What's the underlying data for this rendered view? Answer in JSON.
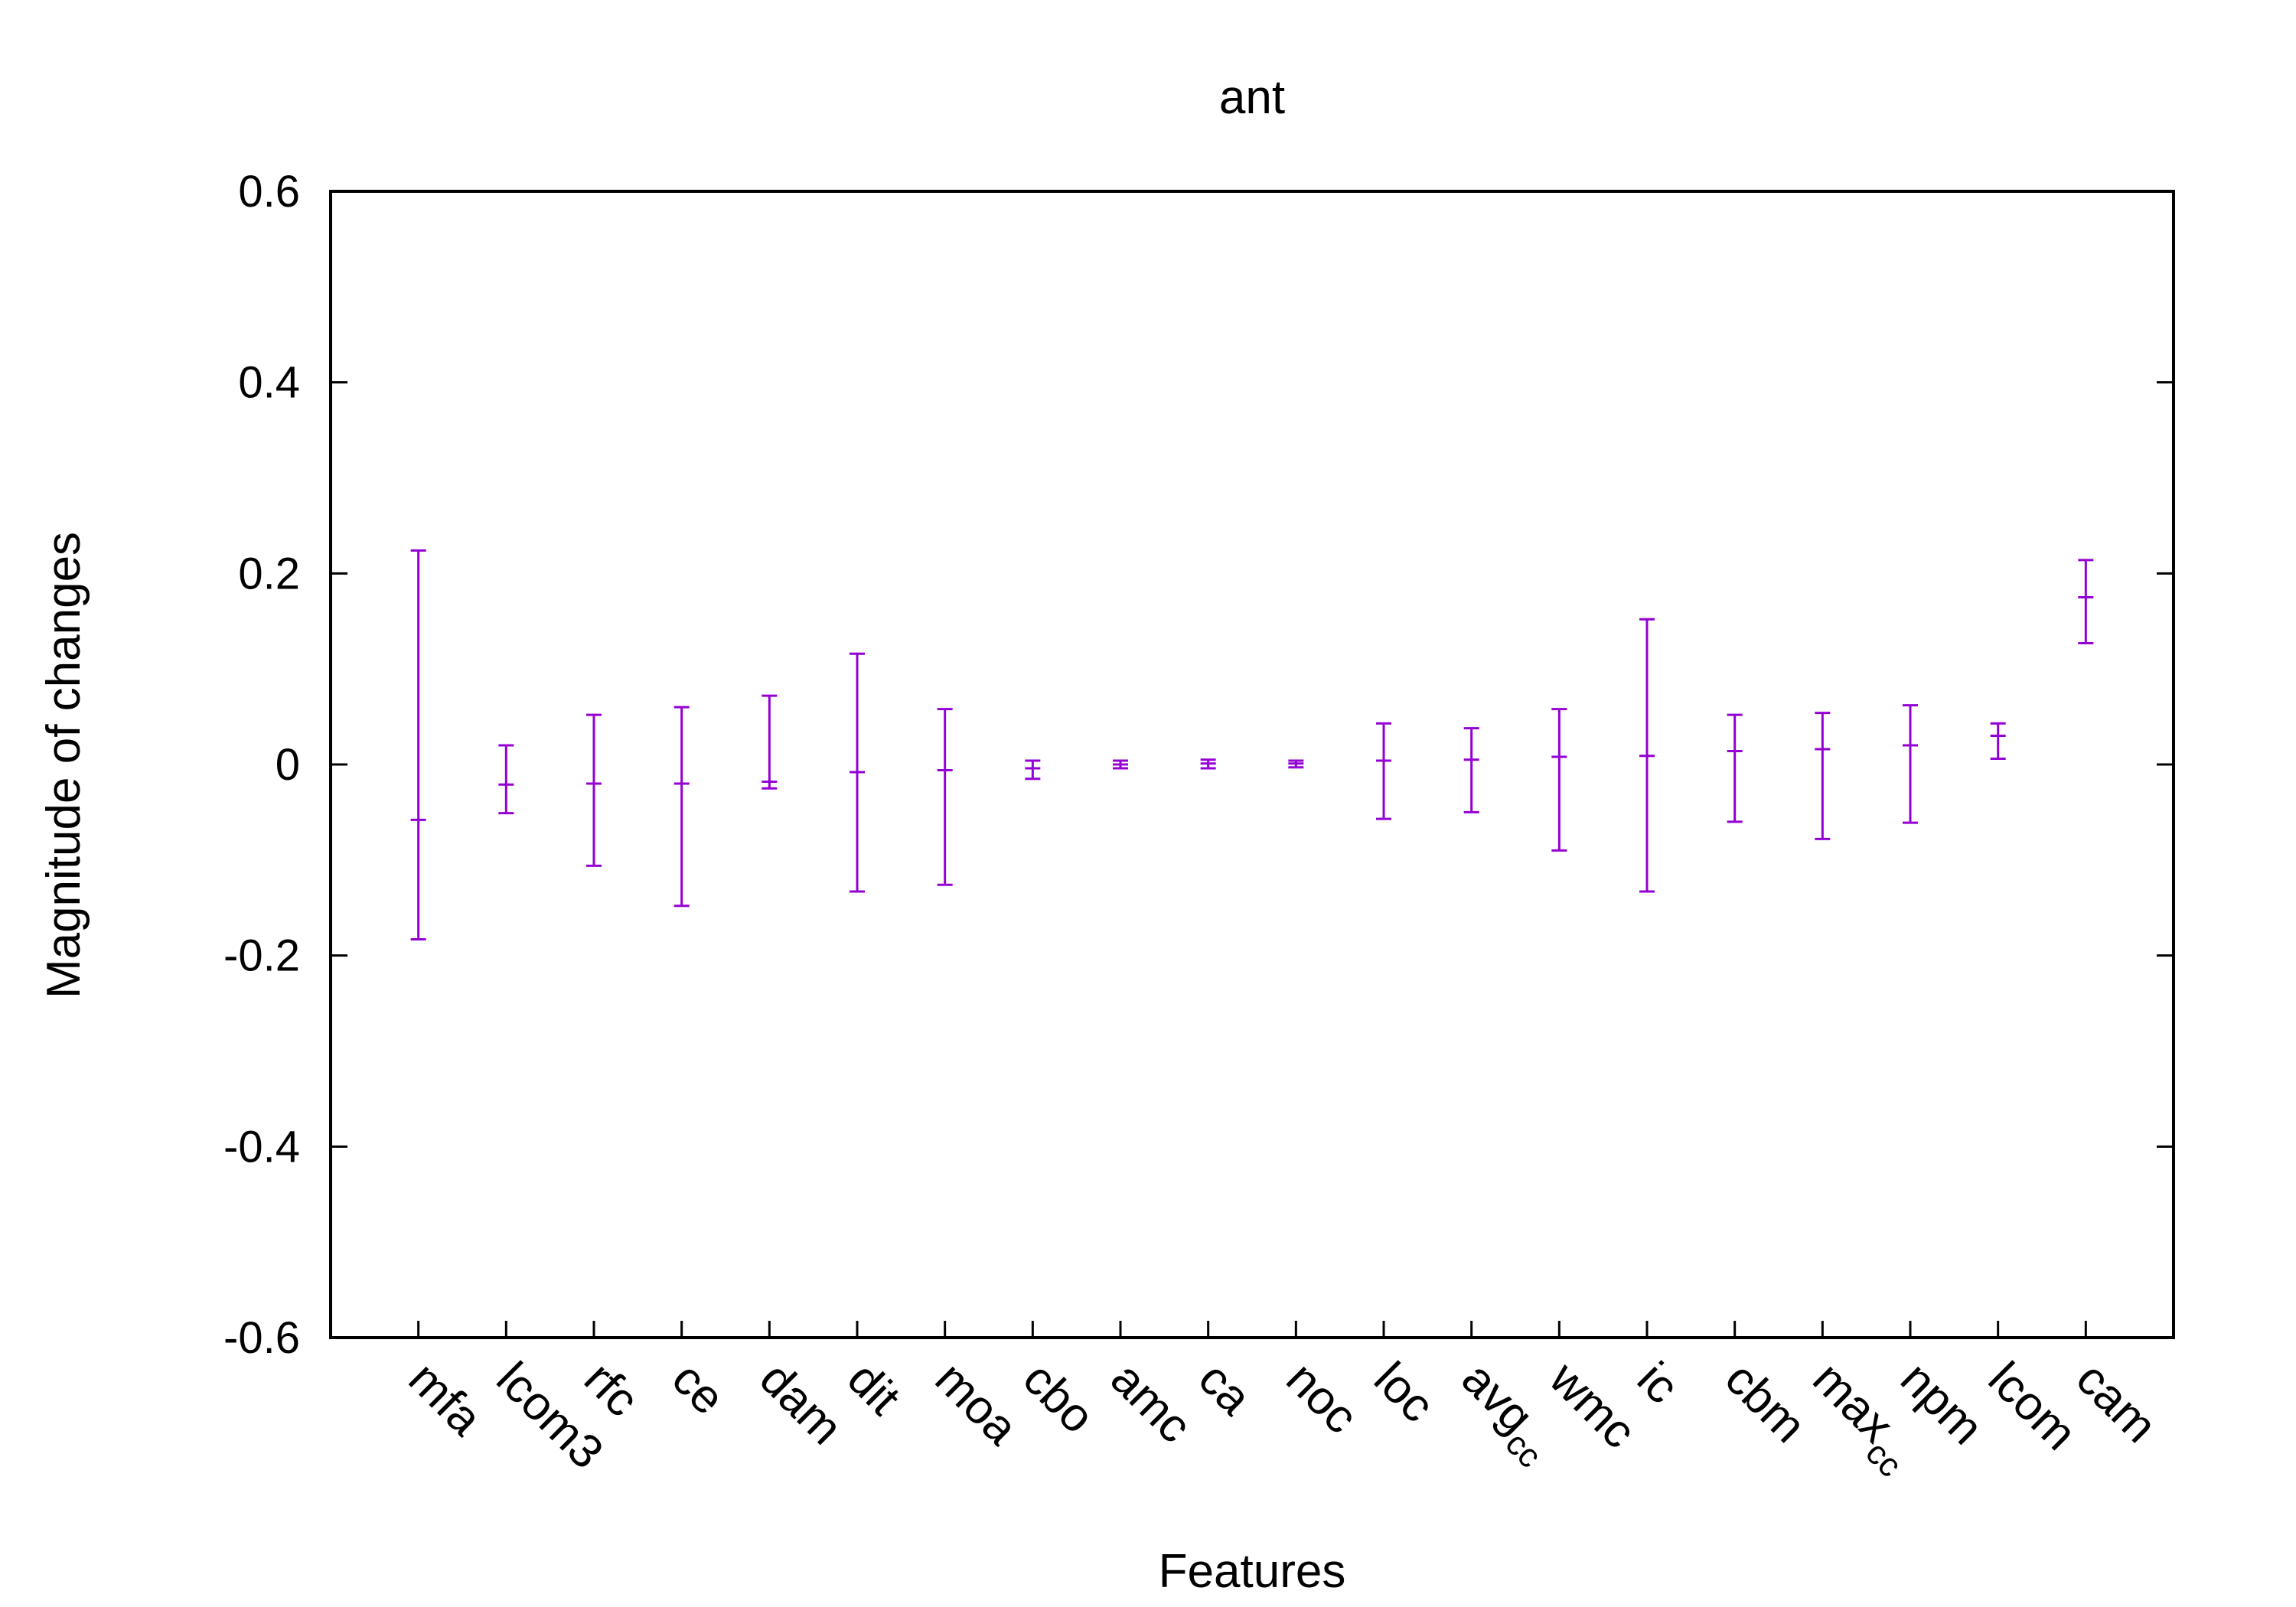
{
  "chart_data": {
    "type": "errorbar",
    "title": "ant",
    "xlabel": "Features",
    "ylabel": "Magnitude of changes",
    "ylim": [
      -0.6,
      0.6
    ],
    "yticks": [
      "-0.6",
      "-0.4",
      "-0.2",
      "0",
      "0.2",
      "0.4",
      "0.6"
    ],
    "ytick_values": [
      -0.6,
      -0.4,
      -0.2,
      0,
      0.2,
      0.4,
      0.6
    ],
    "grid": false,
    "color": "#9400d3",
    "categories": [
      {
        "base": "mfa",
        "sub": ""
      },
      {
        "base": "lcom3",
        "sub": ""
      },
      {
        "base": "rfc",
        "sub": ""
      },
      {
        "base": "ce",
        "sub": ""
      },
      {
        "base": "dam",
        "sub": ""
      },
      {
        "base": "dit",
        "sub": ""
      },
      {
        "base": "moa",
        "sub": ""
      },
      {
        "base": "cbo",
        "sub": ""
      },
      {
        "base": "amc",
        "sub": ""
      },
      {
        "base": "ca",
        "sub": ""
      },
      {
        "base": "noc",
        "sub": ""
      },
      {
        "base": "loc",
        "sub": ""
      },
      {
        "base": "avg",
        "sub": "cc"
      },
      {
        "base": "wmc",
        "sub": ""
      },
      {
        "base": "ic",
        "sub": ""
      },
      {
        "base": "cbm",
        "sub": ""
      },
      {
        "base": "max",
        "sub": "cc"
      },
      {
        "base": "npm",
        "sub": ""
      },
      {
        "base": "lcom",
        "sub": ""
      },
      {
        "base": "cam",
        "sub": ""
      }
    ],
    "series": [
      {
        "center": [
          -0.058,
          -0.021,
          -0.02,
          -0.02,
          -0.018,
          -0.008,
          -0.006,
          -0.004,
          0.0,
          0.001,
          0.001,
          0.004,
          0.005,
          0.008,
          0.009,
          0.014,
          0.016,
          0.02,
          0.03,
          0.175
        ],
        "low": [
          -0.183,
          -0.051,
          -0.106,
          -0.148,
          -0.025,
          -0.133,
          -0.126,
          -0.015,
          -0.004,
          -0.004,
          -0.003,
          -0.057,
          -0.05,
          -0.09,
          -0.133,
          -0.06,
          -0.078,
          -0.061,
          0.006,
          0.127
        ],
        "high": [
          0.224,
          0.02,
          0.052,
          0.06,
          0.072,
          0.116,
          0.058,
          0.004,
          0.004,
          0.005,
          0.004,
          0.043,
          0.038,
          0.058,
          0.152,
          0.052,
          0.054,
          0.062,
          0.043,
          0.214
        ]
      }
    ]
  }
}
